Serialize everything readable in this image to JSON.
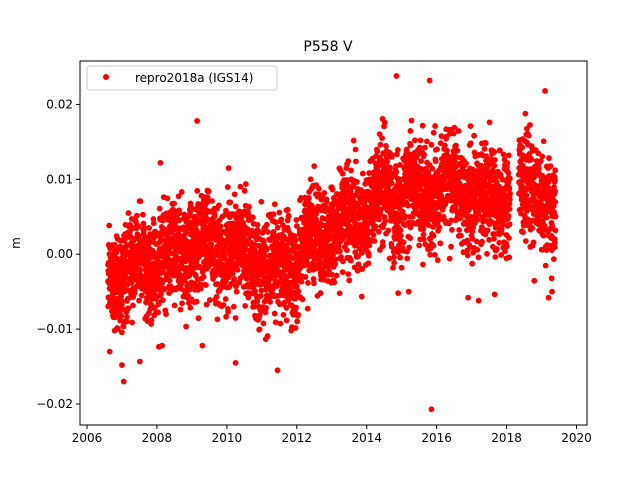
{
  "chart_data": {
    "type": "scatter",
    "title": "P558 V",
    "xlabel": "",
    "ylabel": "m",
    "xlim": [
      2005.8,
      2020.3
    ],
    "ylim": [
      -0.0228,
      0.0258
    ],
    "x_ticks": [
      2006,
      2008,
      2010,
      2012,
      2014,
      2016,
      2018,
      2020
    ],
    "y_ticks": [
      -0.02,
      -0.01,
      0.0,
      0.01,
      0.02
    ],
    "x_tick_labels": [
      "2006",
      "2008",
      "2010",
      "2012",
      "2014",
      "2016",
      "2018",
      "2020"
    ],
    "y_tick_labels": [
      "−0.02",
      "−0.01",
      "0.00",
      "0.01",
      "0.02"
    ],
    "grid": false,
    "legend": {
      "position": "upper-left",
      "entries": [
        "repro2018a (IGS14)"
      ]
    },
    "series": [
      {
        "name": "repro2018a (IGS14)",
        "color": "#ff0000",
        "marker": "circle",
        "trend": [
          {
            "x": 2006.6,
            "y": -0.003
          },
          {
            "x": 2008.0,
            "y": -0.001
          },
          {
            "x": 2009.0,
            "y": 0.001
          },
          {
            "x": 2010.0,
            "y": 0.001
          },
          {
            "x": 2011.0,
            "y": -0.001
          },
          {
            "x": 2011.6,
            "y": -0.002
          },
          {
            "x": 2012.5,
            "y": 0.002
          },
          {
            "x": 2013.5,
            "y": 0.004
          },
          {
            "x": 2014.5,
            "y": 0.008
          },
          {
            "x": 2015.5,
            "y": 0.008
          },
          {
            "x": 2016.5,
            "y": 0.009
          },
          {
            "x": 2017.5,
            "y": 0.007
          },
          {
            "x": 2018.0,
            "y": 0.008
          },
          {
            "x": 2018.9,
            "y": 0.009
          },
          {
            "x": 2019.4,
            "y": 0.004
          }
        ],
        "spread": 0.0033,
        "n_points": 4200,
        "gaps": [
          [
            2018.1,
            2018.35
          ]
        ],
        "outliers": [
          {
            "x": 2009.15,
            "y": 0.0178
          },
          {
            "x": 2008.1,
            "y": 0.0122
          },
          {
            "x": 2010.05,
            "y": 0.0115
          },
          {
            "x": 2014.85,
            "y": 0.0238
          },
          {
            "x": 2015.8,
            "y": 0.0232
          },
          {
            "x": 2019.1,
            "y": 0.0218
          },
          {
            "x": 2015.85,
            "y": -0.0207
          },
          {
            "x": 2007.05,
            "y": -0.017
          },
          {
            "x": 2011.45,
            "y": -0.0155
          },
          {
            "x": 2010.25,
            "y": -0.0145
          },
          {
            "x": 2006.65,
            "y": -0.013
          },
          {
            "x": 2007.0,
            "y": -0.0148
          },
          {
            "x": 2008.15,
            "y": -0.0122
          },
          {
            "x": 2009.3,
            "y": -0.0122
          },
          {
            "x": 2016.9,
            "y": -0.0058
          },
          {
            "x": 2017.2,
            "y": -0.0062
          },
          {
            "x": 2019.2,
            "y": -0.0058
          },
          {
            "x": 2019.3,
            "y": -0.005
          },
          {
            "x": 2015.2,
            "y": -0.005
          },
          {
            "x": 2014.9,
            "y": -0.0052
          }
        ]
      }
    ]
  }
}
